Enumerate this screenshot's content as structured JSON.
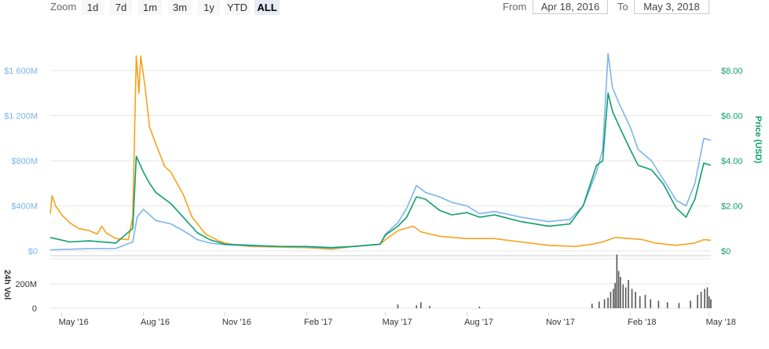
{
  "toolbar": {
    "zoom_label": "Zoom",
    "zoom_buttons": [
      "1d",
      "7d",
      "1m",
      "3m",
      "1y",
      "YTD",
      "ALL"
    ],
    "active_zoom": "ALL",
    "from_label": "From",
    "from_value": "Apr 18, 2016",
    "to_label": "To",
    "to_value": "May 3, 2018"
  },
  "colors": {
    "market_cap": "#7cb5ec",
    "price": "#0e9e6e",
    "volume_line": "#f7a21b",
    "volume_bars": "#555555",
    "left_axis_text": "#7cb5ec",
    "right_axis_text": "#0e9e6e"
  },
  "chart_data": {
    "type": "line",
    "x_start": "2016-04-18",
    "x_end": "2018-05-03",
    "x_ticks": [
      "May '16",
      "Aug '16",
      "Nov '16",
      "Feb '17",
      "May '17",
      "Aug '17",
      "Nov '17",
      "Feb '18",
      "May '18"
    ],
    "left_axis": {
      "ticks": [
        "$0",
        "$400M",
        "$800M",
        "$1 200M",
        "$1 600M"
      ],
      "range": [
        0,
        1600000000
      ]
    },
    "right_axis": {
      "label": "Price (USD)",
      "ticks": [
        "$0",
        "$2.00",
        "$4.00",
        "$6.00",
        "$8.00"
      ],
      "range": [
        0,
        8
      ]
    },
    "volume_axis": {
      "label": "24h Vol",
      "ticks": [
        "0",
        "200M"
      ],
      "range": [
        0,
        200000000
      ]
    },
    "series": [
      {
        "key": "market_cap",
        "axis": "left",
        "points": [
          [
            "2016-04-18",
            10
          ],
          [
            "2016-05-10",
            15
          ],
          [
            "2016-06-01",
            20
          ],
          [
            "2016-07-01",
            22
          ],
          [
            "2016-07-20",
            80
          ],
          [
            "2016-07-25",
            300
          ],
          [
            "2016-08-01",
            370
          ],
          [
            "2016-08-08",
            320
          ],
          [
            "2016-08-15",
            270
          ],
          [
            "2016-09-01",
            240
          ],
          [
            "2016-09-15",
            180
          ],
          [
            "2016-10-01",
            100
          ],
          [
            "2016-10-15",
            70
          ],
          [
            "2016-11-01",
            55
          ],
          [
            "2016-12-01",
            45
          ],
          [
            "2017-01-01",
            40
          ],
          [
            "2017-02-01",
            35
          ],
          [
            "2017-03-01",
            25
          ],
          [
            "2017-03-25",
            40
          ],
          [
            "2017-04-25",
            60
          ],
          [
            "2017-05-01",
            150
          ],
          [
            "2017-05-15",
            250
          ],
          [
            "2017-05-25",
            380
          ],
          [
            "2017-06-05",
            580
          ],
          [
            "2017-06-15",
            520
          ],
          [
            "2017-07-01",
            480
          ],
          [
            "2017-07-15",
            430
          ],
          [
            "2017-08-01",
            400
          ],
          [
            "2017-08-15",
            330
          ],
          [
            "2017-09-01",
            350
          ],
          [
            "2017-10-01",
            300
          ],
          [
            "2017-11-01",
            260
          ],
          [
            "2017-11-25",
            280
          ],
          [
            "2017-12-10",
            400
          ],
          [
            "2017-12-25",
            700
          ],
          [
            "2018-01-01",
            900
          ],
          [
            "2018-01-07",
            1750
          ],
          [
            "2018-01-12",
            1450
          ],
          [
            "2018-01-20",
            1300
          ],
          [
            "2018-02-01",
            1100
          ],
          [
            "2018-02-10",
            900
          ],
          [
            "2018-02-25",
            800
          ],
          [
            "2018-03-10",
            640
          ],
          [
            "2018-03-25",
            450
          ],
          [
            "2018-04-05",
            400
          ],
          [
            "2018-04-15",
            600
          ],
          [
            "2018-04-25",
            1000
          ],
          [
            "2018-05-03",
            980
          ]
        ]
      },
      {
        "key": "price",
        "axis": "right",
        "points": [
          [
            "2016-04-18",
            0.6
          ],
          [
            "2016-05-10",
            0.4
          ],
          [
            "2016-06-01",
            0.45
          ],
          [
            "2016-07-01",
            0.35
          ],
          [
            "2016-07-20",
            1.0
          ],
          [
            "2016-07-24",
            4.2
          ],
          [
            "2016-08-01",
            3.5
          ],
          [
            "2016-08-08",
            3.0
          ],
          [
            "2016-08-15",
            2.6
          ],
          [
            "2016-09-01",
            2.1
          ],
          [
            "2016-09-15",
            1.5
          ],
          [
            "2016-10-01",
            0.8
          ],
          [
            "2016-10-15",
            0.5
          ],
          [
            "2016-11-01",
            0.3
          ],
          [
            "2016-12-01",
            0.25
          ],
          [
            "2017-01-01",
            0.2
          ],
          [
            "2017-02-01",
            0.2
          ],
          [
            "2017-03-01",
            0.15
          ],
          [
            "2017-03-25",
            0.2
          ],
          [
            "2017-04-25",
            0.3
          ],
          [
            "2017-05-01",
            0.7
          ],
          [
            "2017-05-15",
            1.1
          ],
          [
            "2017-05-25",
            1.5
          ],
          [
            "2017-06-05",
            2.4
          ],
          [
            "2017-06-15",
            2.3
          ],
          [
            "2017-07-01",
            1.8
          ],
          [
            "2017-07-15",
            1.6
          ],
          [
            "2017-08-01",
            1.7
          ],
          [
            "2017-08-15",
            1.5
          ],
          [
            "2017-09-01",
            1.6
          ],
          [
            "2017-10-01",
            1.3
          ],
          [
            "2017-11-01",
            1.1
          ],
          [
            "2017-11-25",
            1.2
          ],
          [
            "2017-12-10",
            2.0
          ],
          [
            "2017-12-25",
            3.8
          ],
          [
            "2018-01-01",
            4.0
          ],
          [
            "2018-01-07",
            7.0
          ],
          [
            "2018-01-12",
            6.2
          ],
          [
            "2018-01-20",
            5.5
          ],
          [
            "2018-02-01",
            4.5
          ],
          [
            "2018-02-10",
            3.8
          ],
          [
            "2018-02-25",
            3.6
          ],
          [
            "2018-03-10",
            3.0
          ],
          [
            "2018-03-25",
            1.9
          ],
          [
            "2018-04-05",
            1.5
          ],
          [
            "2018-04-15",
            2.3
          ],
          [
            "2018-04-25",
            3.9
          ],
          [
            "2018-05-03",
            3.8
          ]
        ]
      },
      {
        "key": "volume_line",
        "axis": "left",
        "points": [
          [
            "2016-04-18",
            330
          ],
          [
            "2016-04-20",
            490
          ],
          [
            "2016-04-24",
            400
          ],
          [
            "2016-05-01",
            320
          ],
          [
            "2016-05-10",
            250
          ],
          [
            "2016-05-20",
            200
          ],
          [
            "2016-06-01",
            180
          ],
          [
            "2016-06-10",
            150
          ],
          [
            "2016-06-15",
            220
          ],
          [
            "2016-06-20",
            160
          ],
          [
            "2016-07-01",
            110
          ],
          [
            "2016-07-15",
            100
          ],
          [
            "2016-07-20",
            300
          ],
          [
            "2016-07-24",
            1730
          ],
          [
            "2016-07-27",
            1400
          ],
          [
            "2016-07-29",
            1730
          ],
          [
            "2016-08-03",
            1450
          ],
          [
            "2016-08-08",
            1100
          ],
          [
            "2016-08-15",
            950
          ],
          [
            "2016-08-25",
            750
          ],
          [
            "2016-09-01",
            700
          ],
          [
            "2016-09-15",
            500
          ],
          [
            "2016-09-25",
            300
          ],
          [
            "2016-10-10",
            150
          ],
          [
            "2016-10-25",
            90
          ],
          [
            "2016-11-01",
            70
          ],
          [
            "2016-11-15",
            50
          ],
          [
            "2016-12-01",
            40
          ],
          [
            "2017-01-01",
            35
          ],
          [
            "2017-02-01",
            30
          ],
          [
            "2017-03-01",
            15
          ],
          [
            "2017-03-25",
            40
          ],
          [
            "2017-04-25",
            60
          ],
          [
            "2017-05-01",
            100
          ],
          [
            "2017-05-15",
            180
          ],
          [
            "2017-06-01",
            220
          ],
          [
            "2017-06-10",
            170
          ],
          [
            "2017-07-01",
            130
          ],
          [
            "2017-08-01",
            110
          ],
          [
            "2017-09-01",
            110
          ],
          [
            "2017-10-01",
            80
          ],
          [
            "2017-11-01",
            50
          ],
          [
            "2017-12-01",
            40
          ],
          [
            "2017-12-20",
            60
          ],
          [
            "2018-01-01",
            80
          ],
          [
            "2018-01-15",
            120
          ],
          [
            "2018-02-01",
            110
          ],
          [
            "2018-02-15",
            100
          ],
          [
            "2018-03-01",
            70
          ],
          [
            "2018-03-25",
            50
          ],
          [
            "2018-04-15",
            70
          ],
          [
            "2018-04-25",
            100
          ],
          [
            "2018-05-03",
            95
          ]
        ]
      }
    ],
    "volume_bars": [
      [
        "2017-05-15",
        25
      ],
      [
        "2017-06-05",
        20
      ],
      [
        "2017-06-10",
        40
      ],
      [
        "2017-06-20",
        15
      ],
      [
        "2017-08-15",
        10
      ],
      [
        "2017-12-20",
        30
      ],
      [
        "2017-12-28",
        45
      ],
      [
        "2018-01-03",
        60
      ],
      [
        "2018-01-07",
        70
      ],
      [
        "2018-01-10",
        110
      ],
      [
        "2018-01-13",
        130
      ],
      [
        "2018-01-15",
        170
      ],
      [
        "2018-01-17",
        360
      ],
      [
        "2018-01-19",
        250
      ],
      [
        "2018-01-21",
        210
      ],
      [
        "2018-01-24",
        160
      ],
      [
        "2018-01-27",
        140
      ],
      [
        "2018-01-30",
        190
      ],
      [
        "2018-02-03",
        130
      ],
      [
        "2018-02-07",
        110
      ],
      [
        "2018-02-12",
        80
      ],
      [
        "2018-02-18",
        90
      ],
      [
        "2018-02-24",
        60
      ],
      [
        "2018-03-05",
        50
      ],
      [
        "2018-03-15",
        40
      ],
      [
        "2018-03-28",
        35
      ],
      [
        "2018-04-10",
        50
      ],
      [
        "2018-04-18",
        90
      ],
      [
        "2018-04-22",
        110
      ],
      [
        "2018-04-26",
        130
      ],
      [
        "2018-04-29",
        140
      ],
      [
        "2018-05-01",
        80
      ],
      [
        "2018-05-03",
        60
      ]
    ]
  }
}
